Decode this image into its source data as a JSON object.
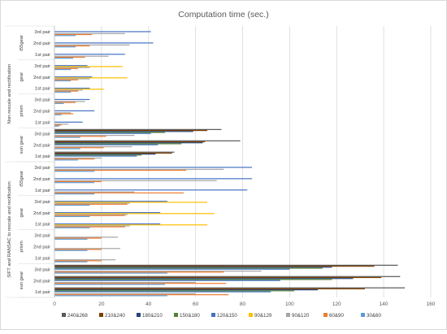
{
  "chart_data": {
    "type": "bar",
    "orientation": "horizontal",
    "title": "Computation time (sec.)",
    "xlabel": "",
    "ylabel": "",
    "xlim": [
      0,
      160
    ],
    "x_ticks": [
      0,
      20,
      40,
      60,
      80,
      100,
      120,
      140,
      160
    ],
    "grid": "vertical",
    "legend_position": "bottom",
    "groups": [
      {
        "label": "SIFT and RANSAC to rescale and rectification",
        "subgroups": [
          {
            "label": "sun gear",
            "pairs": [
              "1st pair",
              "2nd pair",
              "3rd pair"
            ]
          },
          {
            "label": "prism",
            "pairs": [
              "1st pair",
              "2nd pair",
              "3rd pair"
            ]
          },
          {
            "label": "gear",
            "pairs": [
              "1st pair",
              "2nd pair",
              "3rd pair"
            ]
          },
          {
            "label": "t55gear",
            "pairs": [
              "1st pair",
              "2nd pair",
              "3rd pair"
            ]
          }
        ]
      },
      {
        "label": "Non-rescale and rectification",
        "subgroups": [
          {
            "label": "sun gear",
            "pairs": [
              "1st pair",
              "2nd pair",
              "3rd pair"
            ]
          },
          {
            "label": "prism",
            "pairs": [
              "1st pair",
              "2nd pair",
              "3rd pair"
            ]
          },
          {
            "label": "gear",
            "pairs": [
              "1st pair",
              "2nd pair",
              "3rd pair"
            ]
          },
          {
            "label": "t55gear",
            "pairs": [
              "1st pair",
              "2nd pair",
              "3rd pair"
            ]
          }
        ]
      }
    ],
    "series": [
      {
        "name": "240&268",
        "color": "#595959",
        "values": [
          149,
          147,
          146,
          null,
          null,
          null,
          null,
          null,
          null,
          null,
          null,
          null,
          51,
          79,
          71,
          null,
          null,
          null,
          null,
          null,
          null,
          null,
          null,
          null
        ]
      },
      {
        "name": "210&240",
        "color": "#7f3f00",
        "values": [
          132,
          139,
          136,
          null,
          null,
          null,
          null,
          null,
          null,
          null,
          null,
          null,
          50,
          64,
          65,
          null,
          null,
          null,
          null,
          null,
          null,
          null,
          null,
          null
        ]
      },
      {
        "name": "180&210",
        "color": "#264478",
        "values": [
          112,
          127,
          118,
          null,
          null,
          null,
          null,
          null,
          null,
          null,
          null,
          null,
          43,
          63,
          59,
          null,
          null,
          null,
          null,
          null,
          null,
          null,
          null,
          null
        ]
      },
      {
        "name": "150&180",
        "color": "#548235",
        "values": [
          102,
          118,
          114,
          null,
          null,
          null,
          null,
          null,
          null,
          null,
          null,
          null,
          37,
          54,
          47,
          null,
          null,
          null,
          null,
          null,
          null,
          null,
          null,
          null
        ]
      },
      {
        "name": "120&150",
        "color": "#4472c4",
        "values": [
          92,
          96,
          100,
          null,
          null,
          null,
          45,
          45,
          48,
          82,
          84,
          84,
          35,
          44,
          41,
          12,
          17,
          15,
          15,
          16,
          14,
          30,
          42,
          41
        ]
      },
      {
        "name": "90&129",
        "color": "#ffc000",
        "values": [
          null,
          null,
          null,
          null,
          null,
          null,
          65,
          68,
          65,
          null,
          null,
          null,
          null,
          null,
          null,
          null,
          null,
          null,
          21,
          31,
          29,
          null,
          null,
          null
        ]
      },
      {
        "name": "90&120",
        "color": "#a5a5a5",
        "values": [
          60,
          60,
          88,
          26,
          28,
          27,
          32,
          31,
          32,
          34,
          69,
          72,
          20,
          33,
          34,
          6,
          7,
          13,
          12,
          15,
          15,
          23,
          32,
          30
        ]
      },
      {
        "name": "60&90",
        "color": "#ed7d31",
        "values": [
          74,
          73,
          72,
          20,
          20,
          20,
          30,
          30,
          31,
          55,
          20,
          56,
          17,
          21,
          22,
          3,
          8,
          9,
          10,
          10,
          10,
          13,
          15,
          16
        ]
      },
      {
        "name": "30&60",
        "color": "#5b9bd5",
        "values": [
          48,
          47,
          48,
          14,
          14,
          14,
          15,
          15,
          15,
          17,
          17,
          17,
          10,
          11,
          11,
          2,
          3,
          4,
          7,
          7,
          7,
          8,
          9,
          9
        ]
      }
    ]
  }
}
